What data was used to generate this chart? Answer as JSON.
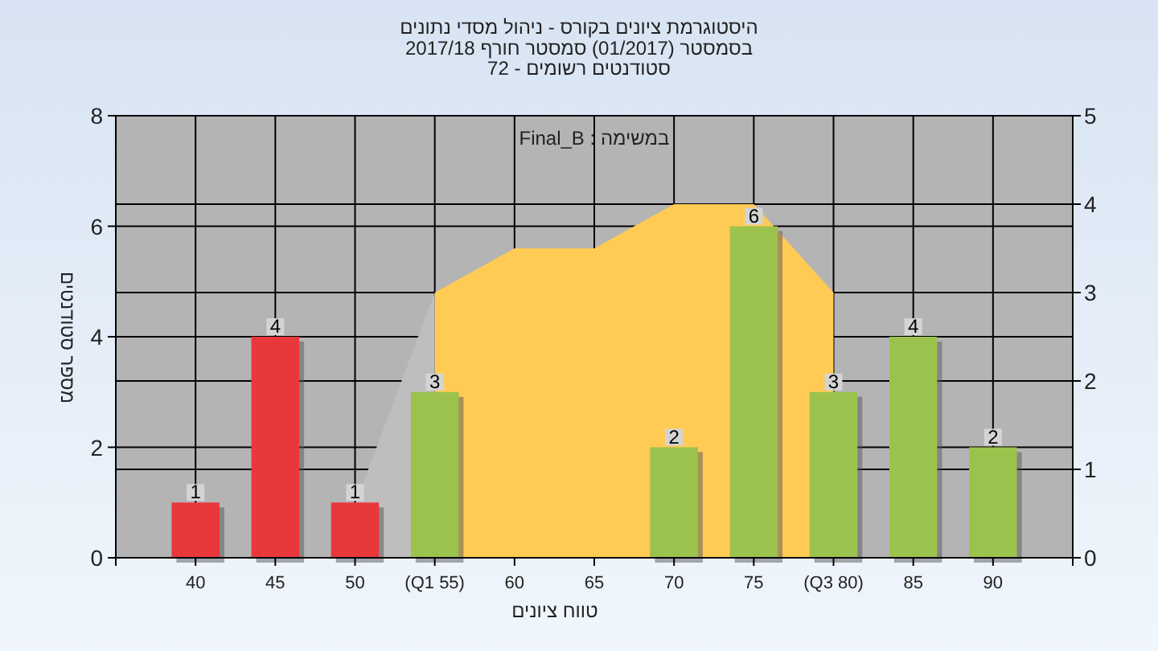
{
  "chart_data": {
    "type": "bar",
    "title": "היסטוגרמת ציונים בקורס - ניהול מסדי נתונים",
    "subtitle": "בסמסטר  (01/2017)  סמסטר חורף 2017/18\nסטודנטים רשומים - 72",
    "xlabel": "טווח ציונים",
    "ylabel": "מספר סטודנטים",
    "annotations": [
      "במשימה : Final_B"
    ],
    "categories": [
      "40",
      "45",
      "50",
      "(Q1 55)",
      "60",
      "65",
      "70",
      "75",
      "(Q3 80)",
      "85",
      "90"
    ],
    "series": [
      {
        "type": "area",
        "axis": "y2",
        "color": "#bebebe",
        "values": [
          null,
          null,
          0.6,
          3,
          null,
          null,
          null,
          null,
          null,
          null,
          null
        ]
      },
      {
        "type": "area",
        "axis": "y2",
        "color": "#ffcb55",
        "values": [
          null,
          null,
          null,
          3,
          3.5,
          3.5,
          4,
          4,
          3,
          null,
          null
        ]
      },
      {
        "colors": [
          "#e8383c",
          "#e8383c",
          "#e8383c",
          "#9cc24e",
          "#9cc24e",
          "#9cc24e",
          "#9cc24e",
          "#9cc24e",
          "#9cc24e",
          "#9cc24e",
          "#9cc24e"
        ],
        "values": [
          1,
          4,
          1,
          3,
          0,
          0,
          2,
          6,
          3,
          4,
          2
        ],
        "value_labels": [
          "1",
          "4",
          "1",
          "3",
          null,
          null,
          "2",
          "6",
          "3",
          "4",
          "2"
        ]
      }
    ],
    "ylim": [
      0,
      8
    ],
    "yticks": [
      0,
      2,
      4,
      6,
      8
    ],
    "y2lim": [
      0,
      5
    ],
    "y2ticks": [
      0,
      1,
      2,
      3,
      4,
      5
    ],
    "grid": true
  }
}
